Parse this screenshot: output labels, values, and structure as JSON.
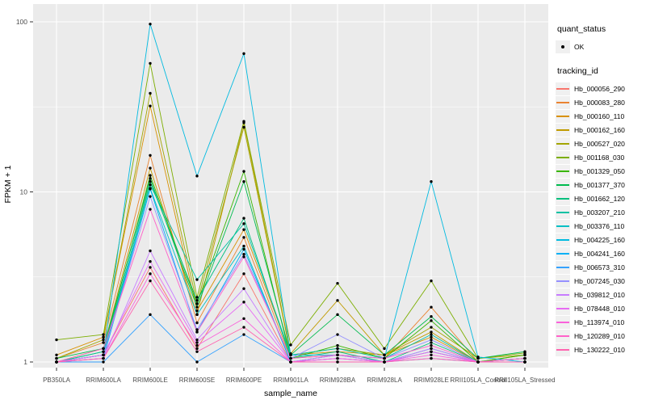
{
  "colors": {
    "panel_bg": "#EBEBEB",
    "grid": "#FFFFFF",
    "key_bg": "#F0F0F0",
    "tick_label": "#4D4D4D",
    "axis_text": "#000000",
    "point": "#000000"
  },
  "legend": {
    "quant_status_title": "quant_status",
    "quant_status_items": [
      {
        "label": "OK",
        "symbol": "point",
        "color": "#000000"
      }
    ],
    "tracking_id_title": "tracking_id"
  },
  "chart_data": {
    "type": "line",
    "title": "",
    "xlabel": "sample_name",
    "ylabel": "FPKM + 1",
    "y_scale": "log10",
    "ylim": [
      1,
      100
    ],
    "y_ticks": [
      1,
      10,
      100
    ],
    "y_tick_labels": [
      "1",
      "10",
      "100"
    ],
    "y_minor_ticks": [
      3.162,
      31.62
    ],
    "grid": true,
    "legend_position": "right",
    "point_color": "#000000",
    "categories": [
      "PB350LA",
      "RRIM600LA",
      "RRIM600LE",
      "RRIM600SE",
      "RRIM600PE",
      "RRIM901LA",
      "RRIM928BA",
      "RRIM928LA",
      "RRIM928LE",
      "RRII105LA_Control",
      "RRII105LA_Stressed"
    ],
    "series": [
      {
        "name": "Hb_000056_290",
        "color": "#F8766D",
        "values": [
          1.0,
          1.1,
          3.6,
          1.2,
          3.3,
          1.0,
          1.1,
          1.0,
          1.15,
          1.0,
          1.0
        ]
      },
      {
        "name": "Hb_000083_280",
        "color": "#EA8331",
        "values": [
          1.05,
          1.3,
          16.4,
          1.7,
          5.4,
          1.05,
          1.1,
          1.05,
          2.1,
          1.0,
          1.05
        ]
      },
      {
        "name": "Hb_000160_110",
        "color": "#D89000",
        "values": [
          1.1,
          1.4,
          32.0,
          2.0,
          6.0,
          1.1,
          1.15,
          1.1,
          1.4,
          1.0,
          1.05
        ]
      },
      {
        "name": "Hb_000162_160",
        "color": "#C09B00",
        "values": [
          1.0,
          1.2,
          13.8,
          1.9,
          25.5,
          1.12,
          2.3,
          1.1,
          1.5,
          1.0,
          1.1
        ]
      },
      {
        "name": "Hb_000527_020",
        "color": "#A3A500",
        "values": [
          1.05,
          1.35,
          38.0,
          2.2,
          24.0,
          1.1,
          1.2,
          1.1,
          1.6,
          1.05,
          1.1
        ]
      },
      {
        "name": "Hb_001168_030",
        "color": "#7CAE00",
        "values": [
          1.35,
          1.45,
          57.0,
          2.4,
          26.0,
          1.26,
          2.9,
          1.2,
          3.0,
          1.05,
          1.13
        ]
      },
      {
        "name": "Hb_001329_050",
        "color": "#39B600",
        "values": [
          1.0,
          1.15,
          12.5,
          2.2,
          13.2,
          1.05,
          1.25,
          1.05,
          1.75,
          1.0,
          1.1
        ]
      },
      {
        "name": "Hb_001377_370",
        "color": "#00BB4E",
        "values": [
          1.05,
          1.2,
          12.0,
          2.1,
          11.5,
          1.1,
          1.9,
          1.1,
          1.85,
          1.05,
          1.15
        ]
      },
      {
        "name": "Hb_001662_120",
        "color": "#00BF7D",
        "values": [
          1.0,
          1.1,
          11.5,
          2.3,
          7.0,
          1.05,
          1.15,
          1.0,
          1.3,
          1.0,
          1.05
        ]
      },
      {
        "name": "Hb_003207_210",
        "color": "#00C1A3",
        "values": [
          1.0,
          1.15,
          11.0,
          3.05,
          6.5,
          1.1,
          1.2,
          1.05,
          1.45,
          1.0,
          1.05
        ]
      },
      {
        "name": "Hb_003376_110",
        "color": "#00BFC4",
        "values": [
          1.0,
          1.1,
          10.5,
          1.9,
          4.8,
          1.0,
          1.1,
          1.0,
          1.2,
          1.0,
          1.0
        ]
      },
      {
        "name": "Hb_004225_160",
        "color": "#00BAE0",
        "values": [
          1.0,
          1.1,
          97.0,
          12.4,
          65.0,
          1.1,
          1.1,
          1.05,
          11.5,
          1.07,
          1.0
        ]
      },
      {
        "name": "Hb_004241_160",
        "color": "#00B0F6",
        "values": [
          1.0,
          1.05,
          10.4,
          1.5,
          4.6,
          1.0,
          1.05,
          1.0,
          1.15,
          1.0,
          1.0
        ]
      },
      {
        "name": "Hb_006573_310",
        "color": "#35A2FF",
        "values": [
          1.0,
          1.0,
          1.9,
          1.0,
          1.45,
          1.0,
          1.0,
          1.0,
          1.05,
          1.0,
          1.0
        ]
      },
      {
        "name": "Hb_007245_030",
        "color": "#9590FF",
        "values": [
          1.0,
          1.1,
          9.4,
          1.55,
          4.3,
          1.05,
          1.45,
          1.05,
          1.35,
          1.0,
          1.05
        ]
      },
      {
        "name": "Hb_039812_010",
        "color": "#C77CFF",
        "values": [
          1.0,
          1.05,
          4.5,
          1.35,
          2.7,
          1.0,
          1.1,
          1.0,
          1.2,
          1.0,
          1.0
        ]
      },
      {
        "name": "Hb_078448_010",
        "color": "#E76BF3",
        "values": [
          1.0,
          1.1,
          3.9,
          1.3,
          2.25,
          1.0,
          1.05,
          1.0,
          1.15,
          1.0,
          1.0
        ]
      },
      {
        "name": "Hb_113974_010",
        "color": "#FA62DB",
        "values": [
          1.0,
          1.05,
          3.3,
          1.25,
          1.8,
          1.0,
          1.05,
          1.0,
          1.1,
          1.0,
          1.0
        ]
      },
      {
        "name": "Hb_120289_010",
        "color": "#FF61C9",
        "values": [
          1.0,
          1.2,
          7.9,
          1.5,
          4.15,
          1.05,
          1.1,
          1.05,
          1.25,
          1.0,
          1.05
        ]
      },
      {
        "name": "Hb_130222_010",
        "color": "#FF65B0",
        "values": [
          1.0,
          1.05,
          3.0,
          1.15,
          1.6,
          1.0,
          1.0,
          1.0,
          1.05,
          1.0,
          1.0
        ]
      }
    ]
  }
}
